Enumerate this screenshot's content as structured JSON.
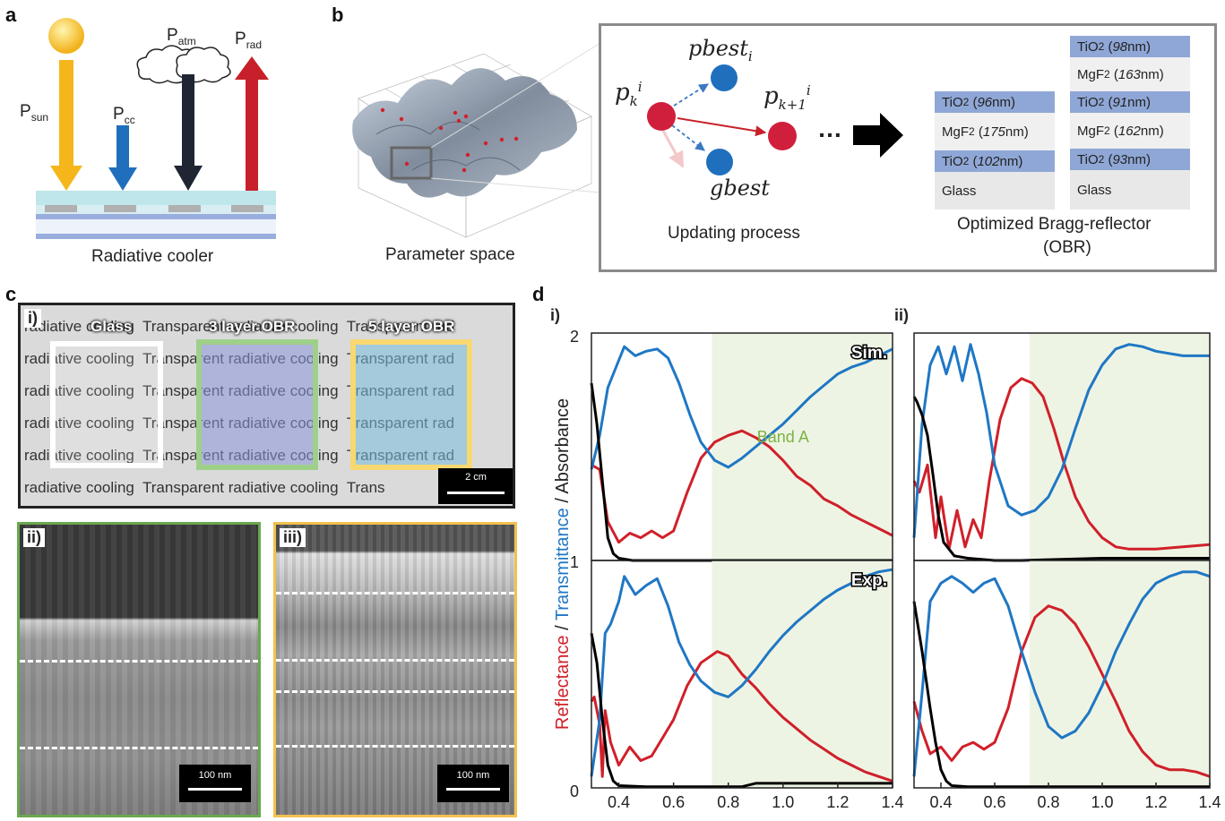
{
  "panel_a": {
    "letter": "a",
    "p_sun": "P",
    "p_sun_sub": "sun",
    "p_cc": "P",
    "p_cc_sub": "cc",
    "p_atm": "P",
    "p_atm_sub": "atm",
    "p_rad": "P",
    "p_rad_sub": "rad",
    "caption": "Radiative cooler",
    "colors": {
      "sun": "#f5b61c",
      "cc": "#1f6fbd",
      "atm": "#1f2533",
      "rad": "#c8202a"
    }
  },
  "panel_b": {
    "letter": "b",
    "param_caption": "Parameter space",
    "pbest": "pbest",
    "pbest_sub": "i",
    "gbest": "gbest",
    "pk": "p",
    "pk_sub": "k",
    "pk_sup": "i",
    "pk1": "p",
    "pk1_sub": "k+1",
    "pk1_sup": "i",
    "dots": "…",
    "update_caption": "Updating process",
    "obr_caption_1": "Optimized Bragg-reflector",
    "obr_caption_2": "(OBR)",
    "stack1": [
      {
        "mat": "TiO",
        "sub": "2",
        "thick": "96",
        "unit": " nm",
        "type": "tio2"
      },
      {
        "mat": "MgF",
        "sub": "2",
        "thick": "175",
        "unit": " nm",
        "type": "mgf2"
      },
      {
        "mat": "TiO",
        "sub": "2",
        "thick": "102",
        "unit": " nm",
        "type": "tio2"
      },
      {
        "mat": "Glass",
        "sub": "",
        "thick": "",
        "unit": "",
        "type": "glass"
      }
    ],
    "stack2": [
      {
        "mat": "TiO",
        "sub": "2",
        "thick": "98",
        "unit": " nm",
        "type": "tio2"
      },
      {
        "mat": "MgF",
        "sub": "2",
        "thick": "163",
        "unit": " nm",
        "type": "mgf2"
      },
      {
        "mat": "TiO",
        "sub": "2",
        "thick": "91",
        "unit": " nm",
        "type": "tio2"
      },
      {
        "mat": "MgF",
        "sub": "2",
        "thick": "162",
        "unit": " nm",
        "type": "mgf2"
      },
      {
        "mat": "TiO",
        "sub": "2",
        "thick": "93",
        "unit": " nm",
        "type": "tio2"
      },
      {
        "mat": "Glass",
        "sub": "",
        "thick": "",
        "unit": "",
        "type": "glass"
      }
    ]
  },
  "panel_c": {
    "letter": "c",
    "sub_i": "i)",
    "sub_ii": "ii)",
    "sub_iii": "iii)",
    "label_glass": "Glass",
    "label_3layer": "3 layer OBR",
    "label_5layer": "5 layer OBR",
    "rows": [
      "radiative cooling  Transparent radiative cooling  Transparent rad",
      "radiative cooling  Transparent radiative cooling  Transparent rad",
      "radiative cooling  Transparent radiative cooling  Transparent rad",
      "radiative cooling  Transparent radiative cooling  Transparent rad",
      "radiative cooling  Transparent radiative cooling  Transparent rad",
      "radiative cooling  Transparent radiative cooling  Trans"
    ],
    "scale_photo": "2 cm",
    "scale_sem_ii": "100 nm",
    "scale_sem_iii": "100 nm"
  },
  "panel_d": {
    "letter": "d",
    "sub_i": "i)",
    "sub_ii": "ii)",
    "ylabel_r": "Reflectance",
    "ylabel_sep1": " / ",
    "ylabel_t": "Transmittance",
    "ylabel_a": " / Absorbance",
    "tag_sim": "Sim.",
    "tag_exp": "Exp.",
    "band_label": "Band A",
    "y_ticks": [
      "2",
      "1",
      "0"
    ],
    "x_ticks": [
      "0.4",
      "0.6",
      "0.8",
      "1.0",
      "1.2",
      "1.4"
    ],
    "colors": {
      "reflectance": "#d0202a",
      "transmittance": "#1f77c4",
      "absorbance": "#000000",
      "band": "#eef4e4"
    }
  },
  "chart_data": [
    {
      "type": "line",
      "title": "",
      "panel": "d-i Sim.",
      "xlim": [
        0.3,
        1.4
      ],
      "ylim": [
        0,
        1
      ],
      "band": [
        0.74,
        1.4
      ],
      "series": [
        {
          "name": "Reflectance",
          "x": [
            0.3,
            0.33,
            0.36,
            0.4,
            0.44,
            0.48,
            0.52,
            0.56,
            0.6,
            0.65,
            0.7,
            0.75,
            0.8,
            0.85,
            0.9,
            0.95,
            1.0,
            1.05,
            1.1,
            1.15,
            1.2,
            1.25,
            1.3,
            1.35,
            1.4
          ],
          "y": [
            0.42,
            0.4,
            0.17,
            0.08,
            0.12,
            0.1,
            0.13,
            0.1,
            0.13,
            0.3,
            0.45,
            0.52,
            0.55,
            0.57,
            0.54,
            0.5,
            0.44,
            0.37,
            0.33,
            0.27,
            0.24,
            0.2,
            0.17,
            0.14,
            0.11
          ]
        },
        {
          "name": "Transmittance",
          "x": [
            0.3,
            0.33,
            0.36,
            0.4,
            0.42,
            0.46,
            0.5,
            0.54,
            0.58,
            0.62,
            0.66,
            0.7,
            0.75,
            0.8,
            0.85,
            0.9,
            0.95,
            1.0,
            1.05,
            1.1,
            1.15,
            1.2,
            1.25,
            1.3,
            1.35,
            1.4
          ],
          "y": [
            0.4,
            0.55,
            0.76,
            0.88,
            0.94,
            0.9,
            0.92,
            0.93,
            0.89,
            0.78,
            0.64,
            0.52,
            0.44,
            0.41,
            0.45,
            0.5,
            0.55,
            0.6,
            0.66,
            0.72,
            0.77,
            0.82,
            0.85,
            0.87,
            0.9,
            0.93
          ]
        },
        {
          "name": "Absorbance",
          "x": [
            0.3,
            0.32,
            0.34,
            0.36,
            0.38,
            0.4,
            0.45,
            1.4
          ],
          "y": [
            0.78,
            0.6,
            0.35,
            0.1,
            0.03,
            0.01,
            0,
            0
          ]
        }
      ]
    },
    {
      "type": "line",
      "title": "",
      "panel": "d-i Exp.",
      "xlim": [
        0.3,
        1.4
      ],
      "ylim": [
        0,
        1
      ],
      "band": [
        0.74,
        1.4
      ],
      "series": [
        {
          "name": "Reflectance",
          "x": [
            0.3,
            0.31,
            0.33,
            0.34,
            0.35,
            0.37,
            0.4,
            0.44,
            0.48,
            0.52,
            0.56,
            0.6,
            0.65,
            0.7,
            0.76,
            0.8,
            0.85,
            0.9,
            0.95,
            1.0,
            1.05,
            1.1,
            1.15,
            1.2,
            1.25,
            1.3,
            1.35,
            1.4
          ],
          "y": [
            0.38,
            0.4,
            0.28,
            0.05,
            0.34,
            0.2,
            0.1,
            0.18,
            0.12,
            0.14,
            0.22,
            0.3,
            0.45,
            0.55,
            0.6,
            0.58,
            0.5,
            0.44,
            0.37,
            0.31,
            0.26,
            0.21,
            0.17,
            0.13,
            0.1,
            0.07,
            0.05,
            0.03
          ]
        },
        {
          "name": "Transmittance",
          "x": [
            0.3,
            0.33,
            0.35,
            0.37,
            0.4,
            0.42,
            0.46,
            0.5,
            0.54,
            0.58,
            0.62,
            0.66,
            0.7,
            0.75,
            0.8,
            0.85,
            0.9,
            0.95,
            1.0,
            1.05,
            1.1,
            1.15,
            1.2,
            1.25,
            1.3,
            1.35,
            1.4
          ],
          "y": [
            0.05,
            0.3,
            0.68,
            0.72,
            0.82,
            0.93,
            0.85,
            0.89,
            0.92,
            0.8,
            0.64,
            0.54,
            0.47,
            0.42,
            0.4,
            0.45,
            0.52,
            0.6,
            0.67,
            0.73,
            0.78,
            0.83,
            0.87,
            0.9,
            0.93,
            0.95,
            0.96
          ]
        },
        {
          "name": "Absorbance",
          "x": [
            0.3,
            0.32,
            0.34,
            0.36,
            0.38,
            0.4,
            0.5,
            0.85,
            0.9,
            1.2,
            1.4
          ],
          "y": [
            0.68,
            0.55,
            0.3,
            0.1,
            0.03,
            0.01,
            0.005,
            0.005,
            0.02,
            0.02,
            0.02
          ]
        }
      ]
    },
    {
      "type": "line",
      "title": "",
      "panel": "d-ii Sim.",
      "xlim": [
        0.3,
        1.4
      ],
      "ylim": [
        0,
        1
      ],
      "band": [
        0.73,
        1.4
      ],
      "series": [
        {
          "name": "Reflectance",
          "x": [
            0.3,
            0.32,
            0.35,
            0.38,
            0.4,
            0.43,
            0.46,
            0.49,
            0.52,
            0.55,
            0.58,
            0.62,
            0.66,
            0.7,
            0.74,
            0.78,
            0.82,
            0.86,
            0.9,
            0.95,
            1.0,
            1.05,
            1.1,
            1.2,
            1.3,
            1.4
          ],
          "y": [
            0.35,
            0.3,
            0.42,
            0.1,
            0.28,
            0.05,
            0.22,
            0.06,
            0.18,
            0.1,
            0.35,
            0.62,
            0.76,
            0.8,
            0.78,
            0.72,
            0.58,
            0.42,
            0.28,
            0.17,
            0.1,
            0.06,
            0.05,
            0.05,
            0.06,
            0.07
          ]
        },
        {
          "name": "Transmittance",
          "x": [
            0.3,
            0.33,
            0.36,
            0.39,
            0.42,
            0.45,
            0.48,
            0.51,
            0.54,
            0.57,
            0.6,
            0.65,
            0.7,
            0.75,
            0.8,
            0.85,
            0.9,
            0.95,
            1.0,
            1.05,
            1.1,
            1.15,
            1.2,
            1.3,
            1.4
          ],
          "y": [
            0.1,
            0.6,
            0.86,
            0.94,
            0.82,
            0.94,
            0.79,
            0.95,
            0.82,
            0.65,
            0.42,
            0.24,
            0.2,
            0.22,
            0.28,
            0.4,
            0.58,
            0.75,
            0.86,
            0.93,
            0.95,
            0.94,
            0.92,
            0.9,
            0.9
          ]
        },
        {
          "name": "Absorbance",
          "x": [
            0.3,
            0.31,
            0.33,
            0.35,
            0.37,
            0.39,
            0.41,
            0.45,
            0.5,
            0.6,
            0.7,
            1.0,
            1.1,
            1.4
          ],
          "y": [
            0.72,
            0.7,
            0.64,
            0.55,
            0.38,
            0.2,
            0.08,
            0.02,
            0.01,
            0,
            0,
            0.01,
            0.01,
            0.01
          ]
        }
      ]
    },
    {
      "type": "line",
      "title": "",
      "panel": "d-ii Exp.",
      "xlim": [
        0.3,
        1.4
      ],
      "ylim": [
        0,
        1
      ],
      "band": [
        0.73,
        1.4
      ],
      "series": [
        {
          "name": "Reflectance",
          "x": [
            0.3,
            0.33,
            0.36,
            0.4,
            0.44,
            0.48,
            0.52,
            0.56,
            0.6,
            0.65,
            0.7,
            0.75,
            0.8,
            0.85,
            0.9,
            0.95,
            1.0,
            1.05,
            1.1,
            1.15,
            1.2,
            1.25,
            1.3,
            1.35,
            1.4
          ],
          "y": [
            0.38,
            0.25,
            0.15,
            0.18,
            0.12,
            0.18,
            0.2,
            0.17,
            0.2,
            0.35,
            0.6,
            0.75,
            0.8,
            0.78,
            0.72,
            0.62,
            0.5,
            0.38,
            0.25,
            0.16,
            0.1,
            0.08,
            0.08,
            0.07,
            0.05
          ]
        },
        {
          "name": "Transmittance",
          "x": [
            0.3,
            0.33,
            0.36,
            0.4,
            0.44,
            0.48,
            0.52,
            0.56,
            0.6,
            0.65,
            0.7,
            0.75,
            0.8,
            0.85,
            0.9,
            0.95,
            1.0,
            1.05,
            1.1,
            1.15,
            1.2,
            1.25,
            1.3,
            1.35,
            1.4
          ],
          "y": [
            0.05,
            0.42,
            0.82,
            0.9,
            0.93,
            0.9,
            0.86,
            0.9,
            0.92,
            0.8,
            0.6,
            0.42,
            0.27,
            0.22,
            0.25,
            0.33,
            0.45,
            0.6,
            0.72,
            0.83,
            0.9,
            0.93,
            0.95,
            0.95,
            0.93
          ]
        },
        {
          "name": "Absorbance",
          "x": [
            0.3,
            0.33,
            0.36,
            0.38,
            0.4,
            0.42,
            0.44,
            0.5,
            1.4
          ],
          "y": [
            0.82,
            0.6,
            0.35,
            0.2,
            0.08,
            0.03,
            0.01,
            0.005,
            0.005
          ]
        }
      ]
    }
  ]
}
